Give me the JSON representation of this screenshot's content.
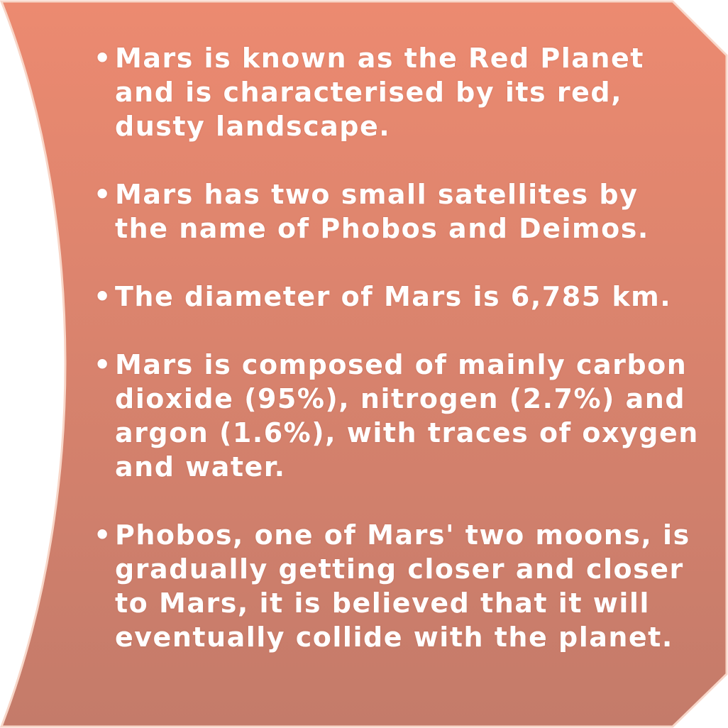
{
  "panel": {
    "fill_top": "#EC8A70",
    "fill_bottom": "#C47B6A",
    "edge_highlight": "#F8D6C8",
    "text_color": "#FFFFFF"
  },
  "facts": [
    {
      "bullet": "•",
      "text": "Mars is known as the Red Planet and is characterised by its red, dusty landscape."
    },
    {
      "bullet": "•",
      "text": "Mars has two small satellites by the name of Phobos and Deimos."
    },
    {
      "bullet": "•",
      "text": "The diameter of Mars is 6,785 km."
    },
    {
      "bullet": "•",
      "text": "Mars is composed of mainly carbon dioxide (95%), nitrogen (2.7%) and argon (1.6%), with traces of oxygen and water."
    },
    {
      "bullet": "•",
      "text": "Phobos, one of Mars' two moons, is gradually getting closer and closer to Mars, it is believed that it will eventually collide with the planet."
    }
  ]
}
